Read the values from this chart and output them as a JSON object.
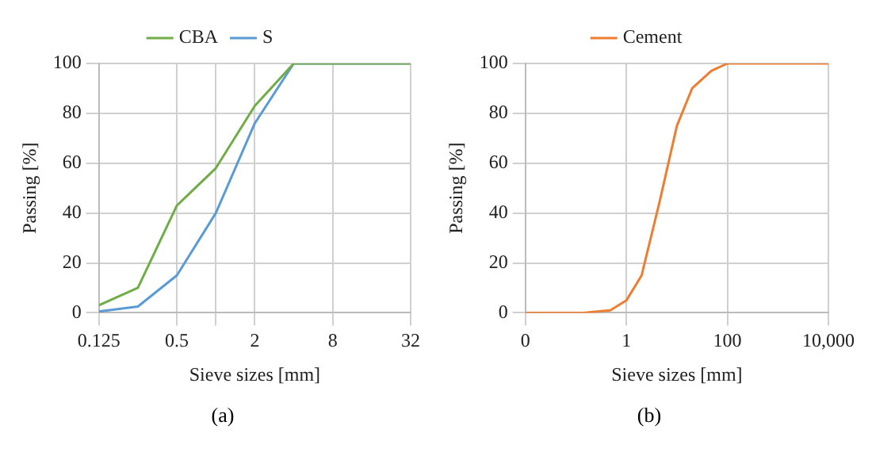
{
  "chart_data": [
    {
      "type": "line",
      "x": [
        0.125,
        0.25,
        0.5,
        1,
        2,
        4,
        32
      ],
      "series": [
        {
          "name": "CBA",
          "color": "#70ad47",
          "values": [
            3,
            10,
            43,
            58,
            83,
            100,
            100
          ]
        },
        {
          "name": "S",
          "color": "#5b9bd5",
          "values": [
            0.5,
            2.5,
            15,
            40,
            76,
            100,
            100
          ]
        }
      ],
      "xlim": [
        0.125,
        32
      ],
      "xticks": [
        0.125,
        0.5,
        {
          "value": 1,
          "label": null
        },
        2,
        8,
        32
      ],
      "ylim": [
        0,
        100
      ],
      "yticks": [
        0,
        20,
        40,
        60,
        80,
        100
      ],
      "log": "x",
      "grid": true,
      "legend": "top",
      "xlabel": "Sieve sizes [mm]",
      "ylabel": "Passing [%]",
      "annotations": [
        "(a)"
      ]
    },
    {
      "type": "line",
      "x": [
        0.01,
        0.14,
        0.48,
        1,
        2,
        4.6,
        10,
        20,
        48,
        100,
        10000
      ],
      "series": [
        {
          "name": "Cement",
          "color": "#ed7d31",
          "values": [
            0,
            0,
            1,
            5,
            15,
            45,
            75,
            90,
            97,
            100,
            100
          ]
        }
      ],
      "xlim": [
        0.01,
        10000
      ],
      "xticks": [
        {
          "value": 0.01,
          "label": "0"
        },
        1,
        100,
        {
          "value": 10000,
          "label": "10,000"
        }
      ],
      "ylim": [
        0,
        100
      ],
      "yticks": [
        0,
        20,
        40,
        60,
        80,
        100
      ],
      "log": "x",
      "grid": true,
      "legend": "top",
      "xlabel": "Sieve sizes [mm]",
      "ylabel": "Passing [%]",
      "annotations": [
        "(b)"
      ]
    }
  ]
}
